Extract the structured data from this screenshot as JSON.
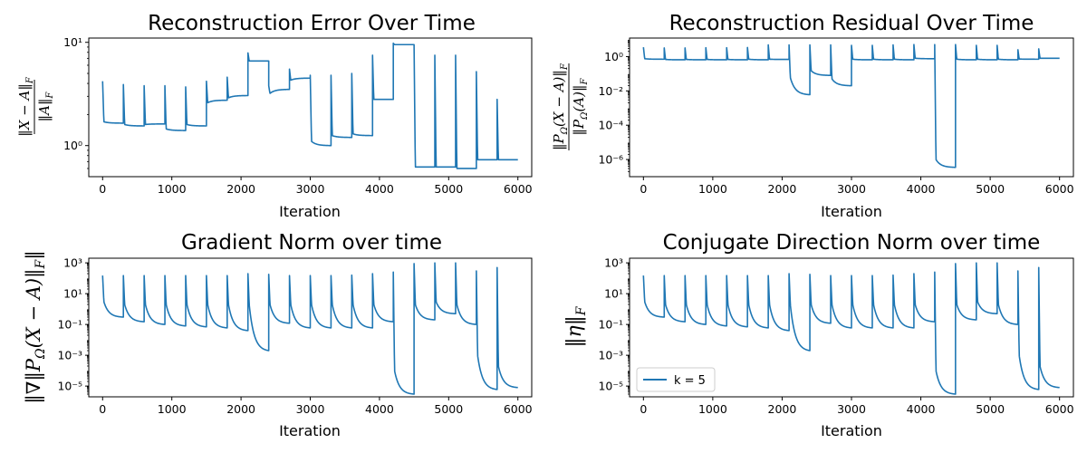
{
  "colors": {
    "series": "#1f77b4",
    "axis": "#000000",
    "legend_border": "#cccccc"
  },
  "chart_data": [
    {
      "type": "line",
      "title": "Reconstruction Error Over Time",
      "xlabel": "Iteration",
      "ylabel": "‖X − A‖F / ‖A‖F",
      "yscale": "log",
      "xlim": [
        -200,
        6200
      ],
      "ylim": [
        0.5,
        11
      ],
      "xticks": [
        0,
        1000,
        2000,
        3000,
        4000,
        5000,
        6000
      ],
      "yticks": [
        {
          "value": 1,
          "label": "10⁰"
        },
        {
          "value": 10,
          "label": "10¹"
        }
      ],
      "grid": false,
      "series": [
        {
          "segments": [
            {
              "start": 0,
              "end": 300,
              "peak": 4.2,
              "settle": 1.7,
              "plateau": 1.65
            },
            {
              "start": 300,
              "end": 600,
              "peak": 3.9,
              "settle": 1.6,
              "plateau": 1.55
            },
            {
              "start": 600,
              "end": 900,
              "peak": 3.8,
              "settle": 1.6,
              "plateau": 1.62
            },
            {
              "start": 900,
              "end": 1200,
              "peak": 3.8,
              "settle": 1.45,
              "plateau": 1.4
            },
            {
              "start": 1200,
              "end": 1500,
              "peak": 3.7,
              "settle": 1.6,
              "plateau": 1.55
            },
            {
              "start": 1500,
              "end": 1800,
              "peak": 4.2,
              "settle": 2.6,
              "plateau": 2.75
            },
            {
              "start": 1800,
              "end": 2100,
              "peak": 4.6,
              "settle": 2.9,
              "plateau": 3.05
            },
            {
              "start": 2100,
              "end": 2400,
              "peak": 7.9,
              "settle": 6.6,
              "plateau": 6.6
            },
            {
              "start": 2400,
              "end": 2700,
              "peak": 3.8,
              "settle": 3.2,
              "plateau": 3.5
            },
            {
              "start": 2700,
              "end": 3000,
              "peak": 5.5,
              "settle": 4.3,
              "plateau": 4.5
            },
            {
              "start": 3000,
              "end": 3300,
              "peak": 4.8,
              "settle": 1.1,
              "plateau": 1.0
            },
            {
              "start": 3300,
              "end": 3600,
              "peak": 4.8,
              "settle": 1.25,
              "plateau": 1.2
            },
            {
              "start": 3600,
              "end": 3900,
              "peak": 5.0,
              "settle": 1.3,
              "plateau": 1.25
            },
            {
              "start": 3900,
              "end": 4200,
              "peak": 7.5,
              "settle": 2.8,
              "plateau": 2.8
            },
            {
              "start": 4200,
              "end": 4500,
              "peak": 9.8,
              "settle": 9.5,
              "plateau": 9.5
            },
            {
              "start": 4500,
              "end": 4800,
              "peak": 9.5,
              "settle": 0.62,
              "plateau": 0.62
            },
            {
              "start": 4800,
              "end": 5100,
              "peak": 7.5,
              "settle": 0.62,
              "plateau": 0.62
            },
            {
              "start": 5100,
              "end": 5400,
              "peak": 7.5,
              "settle": 0.6,
              "plateau": 0.6
            },
            {
              "start": 5400,
              "end": 5700,
              "peak": 5.2,
              "settle": 0.73,
              "plateau": 0.73
            },
            {
              "start": 5700,
              "end": 6000,
              "peak": 2.8,
              "settle": 0.73,
              "plateau": 0.73
            }
          ]
        }
      ]
    },
    {
      "type": "line",
      "title": "Reconstruction Residual Over Time",
      "xlabel": "Iteration",
      "ylabel": "‖PΩ(X − A)‖F / ‖PΩ(A)‖F",
      "yscale": "log",
      "xlim": [
        -200,
        6200
      ],
      "ylim": [
        1e-07,
        12
      ],
      "xticks": [
        0,
        1000,
        2000,
        3000,
        4000,
        5000,
        6000
      ],
      "yticks": [
        {
          "value": 1,
          "label": "10⁰"
        },
        {
          "value": 0.01,
          "label": "10⁻²"
        },
        {
          "value": 0.0001,
          "label": "10⁻⁴"
        },
        {
          "value": 1e-06,
          "label": "10⁻⁶"
        }
      ],
      "grid": false,
      "series": [
        {
          "segments": [
            {
              "start": 0,
              "end": 300,
              "peak": 3.5,
              "settle": 0.75,
              "plateau": 0.7
            },
            {
              "start": 300,
              "end": 600,
              "peak": 3.2,
              "settle": 0.68,
              "plateau": 0.65
            },
            {
              "start": 600,
              "end": 900,
              "peak": 3.2,
              "settle": 0.68,
              "plateau": 0.65
            },
            {
              "start": 900,
              "end": 1200,
              "peak": 3.3,
              "settle": 0.68,
              "plateau": 0.65
            },
            {
              "start": 1200,
              "end": 1500,
              "peak": 3.3,
              "settle": 0.68,
              "plateau": 0.65
            },
            {
              "start": 1500,
              "end": 1800,
              "peak": 3.4,
              "settle": 0.7,
              "plateau": 0.65
            },
            {
              "start": 1800,
              "end": 2100,
              "peak": 4.8,
              "settle": 0.7,
              "plateau": 0.68
            },
            {
              "start": 2100,
              "end": 2400,
              "peak": 4.8,
              "settle": 0.06,
              "plateau": 0.006
            },
            {
              "start": 2400,
              "end": 2700,
              "peak": 4.8,
              "settle": 0.15,
              "plateau": 0.08
            },
            {
              "start": 2700,
              "end": 3000,
              "peak": 4.8,
              "settle": 0.05,
              "plateau": 0.02
            },
            {
              "start": 3000,
              "end": 3300,
              "peak": 4.5,
              "settle": 0.7,
              "plateau": 0.65
            },
            {
              "start": 3300,
              "end": 3600,
              "peak": 4.5,
              "settle": 0.7,
              "plateau": 0.65
            },
            {
              "start": 3600,
              "end": 3900,
              "peak": 4.8,
              "settle": 0.7,
              "plateau": 0.65
            },
            {
              "start": 3900,
              "end": 4200,
              "peak": 5.0,
              "settle": 0.8,
              "plateau": 0.75
            },
            {
              "start": 4200,
              "end": 4500,
              "peak": 5.0,
              "settle": 1e-06,
              "plateau": 3.5e-07
            },
            {
              "start": 4500,
              "end": 4800,
              "peak": 5.0,
              "settle": 0.7,
              "plateau": 0.65
            },
            {
              "start": 4800,
              "end": 5100,
              "peak": 4.5,
              "settle": 0.7,
              "plateau": 0.65
            },
            {
              "start": 5100,
              "end": 5400,
              "peak": 4.5,
              "settle": 0.7,
              "plateau": 0.65
            },
            {
              "start": 5400,
              "end": 5700,
              "peak": 2.5,
              "settle": 0.72,
              "plateau": 0.7
            },
            {
              "start": 5700,
              "end": 6000,
              "peak": 2.8,
              "settle": 0.8,
              "plateau": 0.8
            }
          ]
        }
      ]
    },
    {
      "type": "line",
      "title": "Gradient Norm over time",
      "xlabel": "Iteration",
      "ylabel": "‖∇‖PΩ(X − A)‖F‖",
      "yscale": "log",
      "xlim": [
        -200,
        6200
      ],
      "ylim": [
        2e-06,
        2000
      ],
      "xticks": [
        0,
        1000,
        2000,
        3000,
        4000,
        5000,
        6000
      ],
      "yticks": [
        {
          "value": 1000,
          "label": "10³"
        },
        {
          "value": 10,
          "label": "10¹"
        },
        {
          "value": 0.1,
          "label": "10⁻¹"
        },
        {
          "value": 0.001,
          "label": "10⁻³"
        },
        {
          "value": 1e-05,
          "label": "10⁻⁵"
        }
      ],
      "grid": false,
      "series": [
        {
          "segments": [
            {
              "start": 0,
              "end": 300,
              "peak": 150,
              "settle": 3,
              "plateau": 0.3
            },
            {
              "start": 300,
              "end": 600,
              "peak": 150,
              "settle": 2,
              "plateau": 0.15
            },
            {
              "start": 600,
              "end": 900,
              "peak": 150,
              "settle": 2,
              "plateau": 0.1
            },
            {
              "start": 900,
              "end": 1200,
              "peak": 150,
              "settle": 2,
              "plateau": 0.08
            },
            {
              "start": 1200,
              "end": 1500,
              "peak": 150,
              "settle": 2,
              "plateau": 0.07
            },
            {
              "start": 1500,
              "end": 1800,
              "peak": 150,
              "settle": 2,
              "plateau": 0.06
            },
            {
              "start": 1800,
              "end": 2100,
              "peak": 150,
              "settle": 2,
              "plateau": 0.04
            },
            {
              "start": 2100,
              "end": 2400,
              "peak": 200,
              "settle": 2,
              "plateau": 0.002
            },
            {
              "start": 2400,
              "end": 2700,
              "peak": 180,
              "settle": 2,
              "plateau": 0.12
            },
            {
              "start": 2700,
              "end": 3000,
              "peak": 150,
              "settle": 2,
              "plateau": 0.06
            },
            {
              "start": 3000,
              "end": 3300,
              "peak": 150,
              "settle": 2,
              "plateau": 0.06
            },
            {
              "start": 3300,
              "end": 3600,
              "peak": 150,
              "settle": 2,
              "plateau": 0.06
            },
            {
              "start": 3600,
              "end": 3900,
              "peak": 160,
              "settle": 2,
              "plateau": 0.06
            },
            {
              "start": 3900,
              "end": 4200,
              "peak": 200,
              "settle": 2,
              "plateau": 0.15
            },
            {
              "start": 4200,
              "end": 4500,
              "peak": 250,
              "settle": 0.0001,
              "plateau": 3e-06
            },
            {
              "start": 4500,
              "end": 4800,
              "peak": 900,
              "settle": 2,
              "plateau": 0.2
            },
            {
              "start": 4800,
              "end": 5100,
              "peak": 1000,
              "settle": 3,
              "plateau": 0.5
            },
            {
              "start": 5100,
              "end": 5400,
              "peak": 1000,
              "settle": 2,
              "plateau": 0.1
            },
            {
              "start": 5400,
              "end": 5700,
              "peak": 300,
              "settle": 0.001,
              "plateau": 6e-06
            },
            {
              "start": 5700,
              "end": 6000,
              "peak": 500,
              "settle": 0.0002,
              "plateau": 8e-06
            }
          ]
        }
      ]
    },
    {
      "type": "line",
      "title": "Conjugate Direction Norm over time",
      "xlabel": "Iteration",
      "ylabel": "‖η‖F",
      "yscale": "log",
      "xlim": [
        -200,
        6200
      ],
      "ylim": [
        2e-06,
        2000
      ],
      "xticks": [
        0,
        1000,
        2000,
        3000,
        4000,
        5000,
        6000
      ],
      "yticks": [
        {
          "value": 1000,
          "label": "10³"
        },
        {
          "value": 10,
          "label": "10¹"
        },
        {
          "value": 0.1,
          "label": "10⁻¹"
        },
        {
          "value": 0.001,
          "label": "10⁻³"
        },
        {
          "value": 1e-05,
          "label": "10⁻⁵"
        }
      ],
      "grid": false,
      "legend": {
        "position": "lower-left",
        "entries": [
          "k = 5"
        ]
      },
      "series": [
        {
          "name": "k = 5",
          "segments": [
            {
              "start": 0,
              "end": 300,
              "peak": 150,
              "settle": 3,
              "plateau": 0.3
            },
            {
              "start": 300,
              "end": 600,
              "peak": 150,
              "settle": 2,
              "plateau": 0.15
            },
            {
              "start": 600,
              "end": 900,
              "peak": 150,
              "settle": 2,
              "plateau": 0.1
            },
            {
              "start": 900,
              "end": 1200,
              "peak": 150,
              "settle": 2,
              "plateau": 0.08
            },
            {
              "start": 1200,
              "end": 1500,
              "peak": 150,
              "settle": 2,
              "plateau": 0.07
            },
            {
              "start": 1500,
              "end": 1800,
              "peak": 150,
              "settle": 2,
              "plateau": 0.06
            },
            {
              "start": 1800,
              "end": 2100,
              "peak": 150,
              "settle": 2,
              "plateau": 0.04
            },
            {
              "start": 2100,
              "end": 2400,
              "peak": 200,
              "settle": 2,
              "plateau": 0.002
            },
            {
              "start": 2400,
              "end": 2700,
              "peak": 180,
              "settle": 2,
              "plateau": 0.12
            },
            {
              "start": 2700,
              "end": 3000,
              "peak": 150,
              "settle": 2,
              "plateau": 0.06
            },
            {
              "start": 3000,
              "end": 3300,
              "peak": 150,
              "settle": 2,
              "plateau": 0.06
            },
            {
              "start": 3300,
              "end": 3600,
              "peak": 150,
              "settle": 2,
              "plateau": 0.06
            },
            {
              "start": 3600,
              "end": 3900,
              "peak": 160,
              "settle": 2,
              "plateau": 0.06
            },
            {
              "start": 3900,
              "end": 4200,
              "peak": 200,
              "settle": 2,
              "plateau": 0.15
            },
            {
              "start": 4200,
              "end": 4500,
              "peak": 250,
              "settle": 0.0001,
              "plateau": 3e-06
            },
            {
              "start": 4500,
              "end": 4800,
              "peak": 900,
              "settle": 2,
              "plateau": 0.2
            },
            {
              "start": 4800,
              "end": 5100,
              "peak": 1000,
              "settle": 3,
              "plateau": 0.5
            },
            {
              "start": 5100,
              "end": 5400,
              "peak": 1000,
              "settle": 2,
              "plateau": 0.1
            },
            {
              "start": 5400,
              "end": 5700,
              "peak": 300,
              "settle": 0.001,
              "plateau": 6e-06
            },
            {
              "start": 5700,
              "end": 6000,
              "peak": 500,
              "settle": 0.0002,
              "plateau": 8e-06
            }
          ]
        }
      ]
    }
  ]
}
